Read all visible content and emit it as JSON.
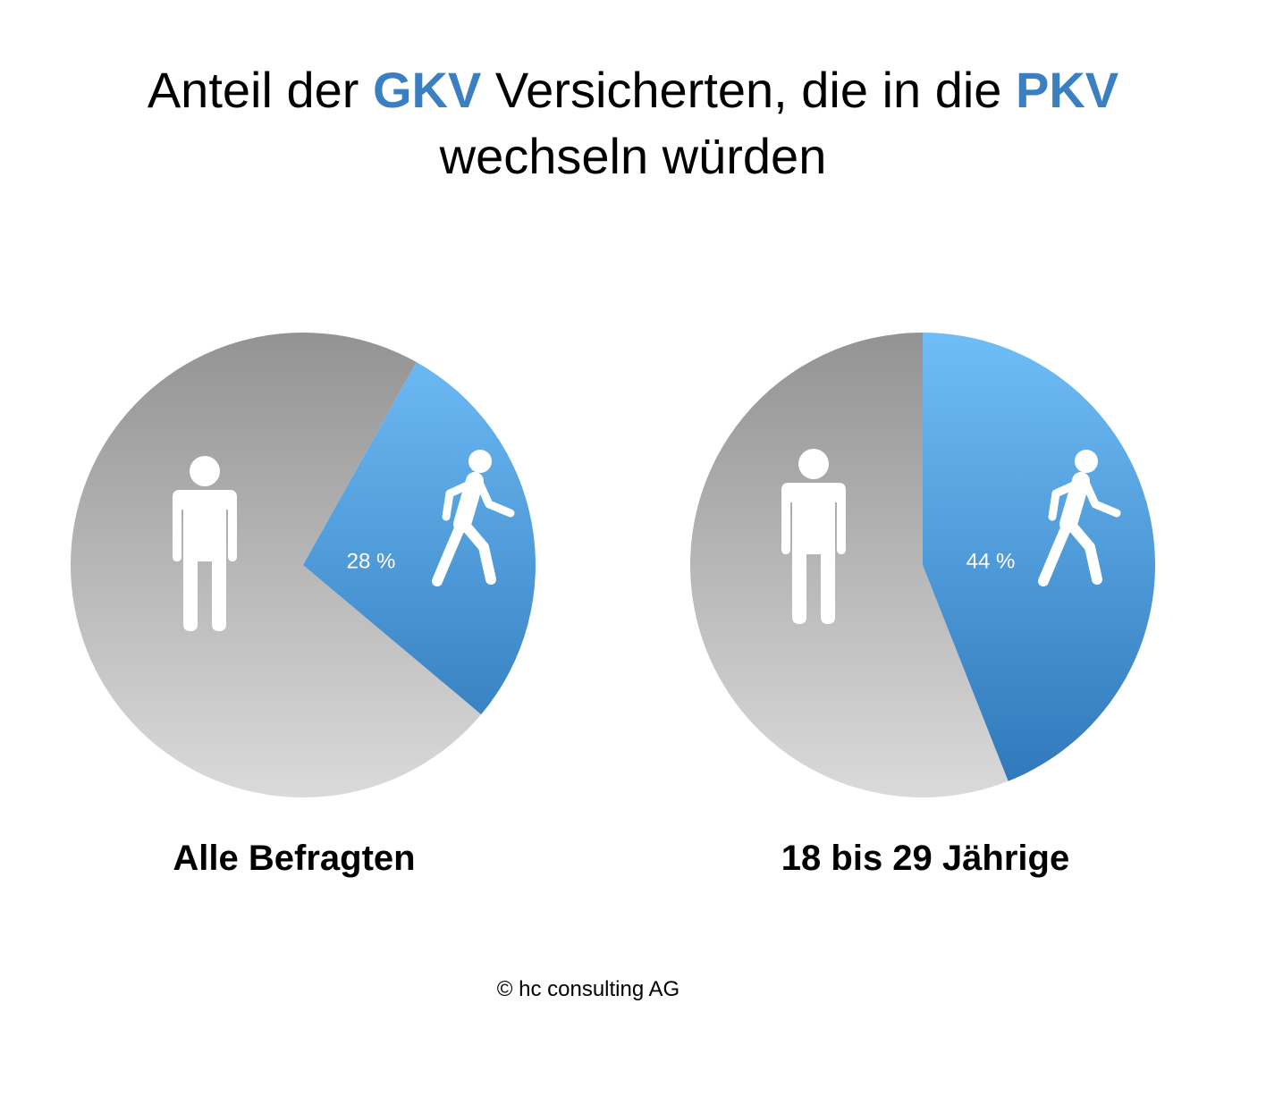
{
  "title": {
    "part1": "Anteil der ",
    "highlight1": "GKV",
    "part2": " Versicherten, die in die ",
    "highlight2": "PKV",
    "part3": "wechseln würden"
  },
  "colors": {
    "accent": "#3a7fc1",
    "gray_top": "#939393",
    "gray_bottom": "#dadada",
    "blue_top": "#6fbdf7",
    "blue_bottom": "#2e76b8"
  },
  "chart_data": [
    {
      "type": "pie",
      "label": "Alle Befragten",
      "slices": [
        {
          "value": 28,
          "label": "28 %",
          "highlight": true,
          "icon": "walking-person-icon"
        },
        {
          "value": 72,
          "label": "",
          "highlight": false,
          "icon": "standing-person-icon"
        }
      ]
    },
    {
      "type": "pie",
      "label": "18 bis 29 Jährige",
      "slices": [
        {
          "value": 44,
          "label": "44 %",
          "highlight": true,
          "icon": "walking-person-icon"
        },
        {
          "value": 56,
          "label": "",
          "highlight": false,
          "icon": "standing-person-icon"
        }
      ]
    }
  ],
  "footer": {
    "copyright": "© hc consulting AG"
  }
}
